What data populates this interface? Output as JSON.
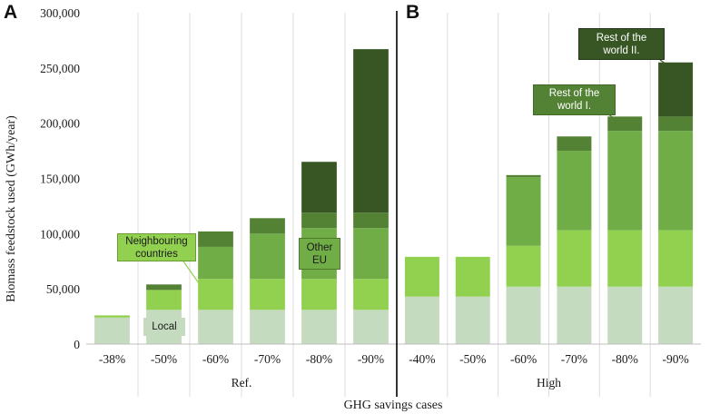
{
  "chart_data": {
    "type": "bar",
    "stacked": true,
    "ylabel": "Biomass feedstock used (GWh/year)",
    "xlabel": "GHG savings cases",
    "ylim": [
      0,
      300000
    ],
    "yticks": [
      "0",
      "50,000",
      "100,000",
      "150,000",
      "200,000",
      "250,000",
      "300,000"
    ],
    "ytick_values": [
      0,
      50000,
      100000,
      150000,
      200000,
      250000,
      300000
    ],
    "grid": "vertical",
    "panels": [
      {
        "letter": "A",
        "group_label": "Ref.",
        "categories": [
          "-38%",
          "-50%",
          "-60%",
          "-70%",
          "-80%",
          "-90%"
        ],
        "series": [
          {
            "name": "Local",
            "values": [
              24000,
              31000,
              31000,
              31000,
              31000,
              31000
            ]
          },
          {
            "name": "Neighbouring countries",
            "values": [
              2000,
              18000,
              28000,
              28000,
              28000,
              28000
            ]
          },
          {
            "name": "Other EU",
            "values": [
              0,
              0,
              29000,
              41000,
              46000,
              46000
            ]
          },
          {
            "name": "Rest of the world I.",
            "values": [
              0,
              5000,
              14000,
              14000,
              14000,
              14000
            ]
          },
          {
            "name": "Rest of the world II.",
            "values": [
              0,
              0,
              0,
              0,
              46000,
              148000
            ]
          }
        ]
      },
      {
        "letter": "B",
        "group_label": "High",
        "categories": [
          "-40%",
          "-50%",
          "-60%",
          "-70%",
          "-80%",
          "-90%"
        ],
        "series": [
          {
            "name": "Local",
            "values": [
              43000,
              43000,
              52000,
              52000,
              52000,
              52000
            ]
          },
          {
            "name": "Neighbouring countries",
            "values": [
              36000,
              36000,
              37000,
              51000,
              51000,
              51000
            ]
          },
          {
            "name": "Other EU",
            "values": [
              0,
              0,
              62000,
              72000,
              90000,
              90000
            ]
          },
          {
            "name": "Rest of the world I.",
            "values": [
              0,
              0,
              2000,
              13000,
              13000,
              13000
            ]
          },
          {
            "name": "Rest of the world II.",
            "values": [
              0,
              0,
              0,
              0,
              0,
              49000
            ]
          }
        ]
      }
    ],
    "colors": {
      "Local": "#c5dbbf",
      "Neighbouring countries": "#92d050",
      "Other EU": "#70ad47",
      "Rest of the world I.": "#548235",
      "Rest of the world II.": "#375623"
    },
    "annotations": [
      {
        "name": "local",
        "text": "Local"
      },
      {
        "name": "neighbouring",
        "text": "Neighbouring\ncountries"
      },
      {
        "name": "other-eu",
        "text": "Other\nEU"
      },
      {
        "name": "rotw1",
        "text": "Rest of the\nworld I."
      },
      {
        "name": "rotw2",
        "text": "Rest of the\nworld II."
      }
    ]
  }
}
